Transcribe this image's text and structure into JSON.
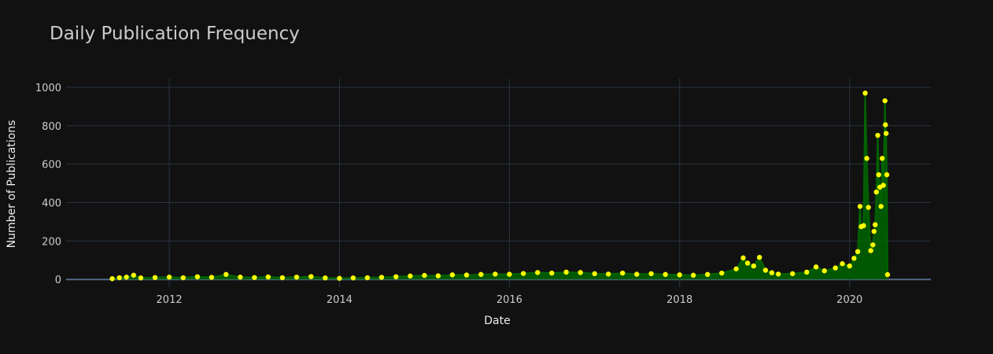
{
  "chart_data": {
    "type": "scatter",
    "title": "Daily Publication Frequency",
    "xlabel": "Date",
    "ylabel": "Number of Publications",
    "xlim": [
      "2010-10-15",
      "2020-12-15"
    ],
    "ylim": [
      -40,
      1045
    ],
    "x_ticks": [
      "2012",
      "2014",
      "2016",
      "2018",
      "2020"
    ],
    "y_ticks": [
      0,
      200,
      400,
      600,
      800,
      1000
    ],
    "grid": true,
    "legend": "none",
    "colors": {
      "background": "#111111",
      "marker": "#ffff00",
      "line": "#006400",
      "grid": "#283442"
    },
    "series": [
      {
        "mode": "lines+markers",
        "points": [
          [
            "2011-05-01",
            4
          ],
          [
            "2011-06-01",
            9
          ],
          [
            "2011-07-01",
            12
          ],
          [
            "2011-08-01",
            22
          ],
          [
            "2011-09-01",
            8
          ],
          [
            "2011-11-01",
            10
          ],
          [
            "2012-01-01",
            12
          ],
          [
            "2012-03-01",
            9
          ],
          [
            "2012-05-01",
            14
          ],
          [
            "2012-07-01",
            11
          ],
          [
            "2012-09-01",
            26
          ],
          [
            "2012-11-01",
            12
          ],
          [
            "2013-01-01",
            10
          ],
          [
            "2013-03-01",
            13
          ],
          [
            "2013-05-01",
            9
          ],
          [
            "2013-07-01",
            12
          ],
          [
            "2013-09-01",
            15
          ],
          [
            "2013-11-01",
            8
          ],
          [
            "2014-01-01",
            6
          ],
          [
            "2014-03-01",
            8
          ],
          [
            "2014-05-01",
            9
          ],
          [
            "2014-07-01",
            11
          ],
          [
            "2014-09-01",
            14
          ],
          [
            "2014-11-01",
            18
          ],
          [
            "2015-01-01",
            21
          ],
          [
            "2015-03-01",
            19
          ],
          [
            "2015-05-01",
            24
          ],
          [
            "2015-07-01",
            23
          ],
          [
            "2015-09-01",
            26
          ],
          [
            "2015-11-01",
            28
          ],
          [
            "2016-01-01",
            27
          ],
          [
            "2016-03-01",
            31
          ],
          [
            "2016-05-01",
            36
          ],
          [
            "2016-07-01",
            33
          ],
          [
            "2016-09-01",
            38
          ],
          [
            "2016-11-01",
            36
          ],
          [
            "2017-01-01",
            30
          ],
          [
            "2017-03-01",
            28
          ],
          [
            "2017-05-01",
            33
          ],
          [
            "2017-07-01",
            27
          ],
          [
            "2017-09-01",
            30
          ],
          [
            "2017-11-01",
            26
          ],
          [
            "2018-01-01",
            24
          ],
          [
            "2018-03-01",
            22
          ],
          [
            "2018-05-01",
            26
          ],
          [
            "2018-07-01",
            33
          ],
          [
            "2018-09-01",
            55
          ],
          [
            "2018-10-01",
            112
          ],
          [
            "2018-10-20",
            85
          ],
          [
            "2018-11-15",
            70
          ],
          [
            "2018-12-10",
            115
          ],
          [
            "2019-01-05",
            48
          ],
          [
            "2019-02-01",
            35
          ],
          [
            "2019-03-01",
            28
          ],
          [
            "2019-05-01",
            30
          ],
          [
            "2019-07-01",
            38
          ],
          [
            "2019-08-10",
            65
          ],
          [
            "2019-09-15",
            45
          ],
          [
            "2019-11-01",
            60
          ],
          [
            "2019-12-01",
            82
          ],
          [
            "2020-01-01",
            70
          ],
          [
            "2020-01-20",
            110
          ],
          [
            "2020-02-05",
            145
          ],
          [
            "2020-02-15",
            380
          ],
          [
            "2020-02-20",
            275
          ],
          [
            "2020-03-01",
            280
          ],
          [
            "2020-03-08",
            970
          ],
          [
            "2020-03-15",
            630
          ],
          [
            "2020-03-22",
            375
          ],
          [
            "2020-04-01",
            150
          ],
          [
            "2020-04-10",
            180
          ],
          [
            "2020-04-15",
            250
          ],
          [
            "2020-04-20",
            285
          ],
          [
            "2020-04-25",
            455
          ],
          [
            "2020-05-01",
            750
          ],
          [
            "2020-05-05",
            545
          ],
          [
            "2020-05-10",
            480
          ],
          [
            "2020-05-15",
            380
          ],
          [
            "2020-05-20",
            630
          ],
          [
            "2020-05-25",
            490
          ],
          [
            "2020-06-01",
            930
          ],
          [
            "2020-06-03",
            805
          ],
          [
            "2020-06-06",
            760
          ],
          [
            "2020-06-09",
            545
          ],
          [
            "2020-06-12",
            25
          ]
        ]
      }
    ]
  }
}
